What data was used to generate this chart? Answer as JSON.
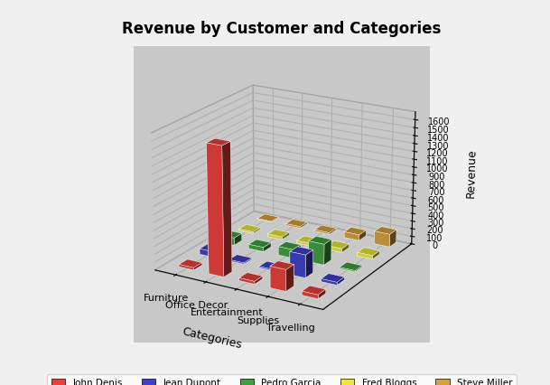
{
  "title": "Revenue by Customer and Categories",
  "xlabel": "Categories",
  "ylabel": "Revenue",
  "categories": [
    "Furniture",
    "Office Decor",
    "Entertainment",
    "Supplies",
    "Travelling"
  ],
  "series": [
    "John Denis",
    "Jean Dupont",
    "Pedro Garcia",
    "Fred Bloggs",
    "Steve Miller"
  ],
  "colors": [
    "#E8413C",
    "#4040C8",
    "#40A040",
    "#E8E840",
    "#D4A040"
  ],
  "values": [
    [
      30,
      1620,
      35,
      270,
      50
    ],
    [
      70,
      15,
      15,
      290,
      35
    ],
    [
      95,
      55,
      110,
      265,
      15
    ],
    [
      20,
      35,
      30,
      50,
      45
    ],
    [
      10,
      20,
      20,
      75,
      165
    ]
  ],
  "ylim": [
    0,
    1700
  ],
  "yticks": [
    0,
    100,
    200,
    300,
    400,
    500,
    600,
    700,
    800,
    900,
    1000,
    1100,
    1200,
    1300,
    1400,
    1500,
    1600
  ],
  "background_color": "#C8C8C8",
  "bar_depth": 0.4,
  "bar_width": 0.5,
  "view_elev": 20,
  "view_azim": -60,
  "fig_bg": "#F0F0F0"
}
